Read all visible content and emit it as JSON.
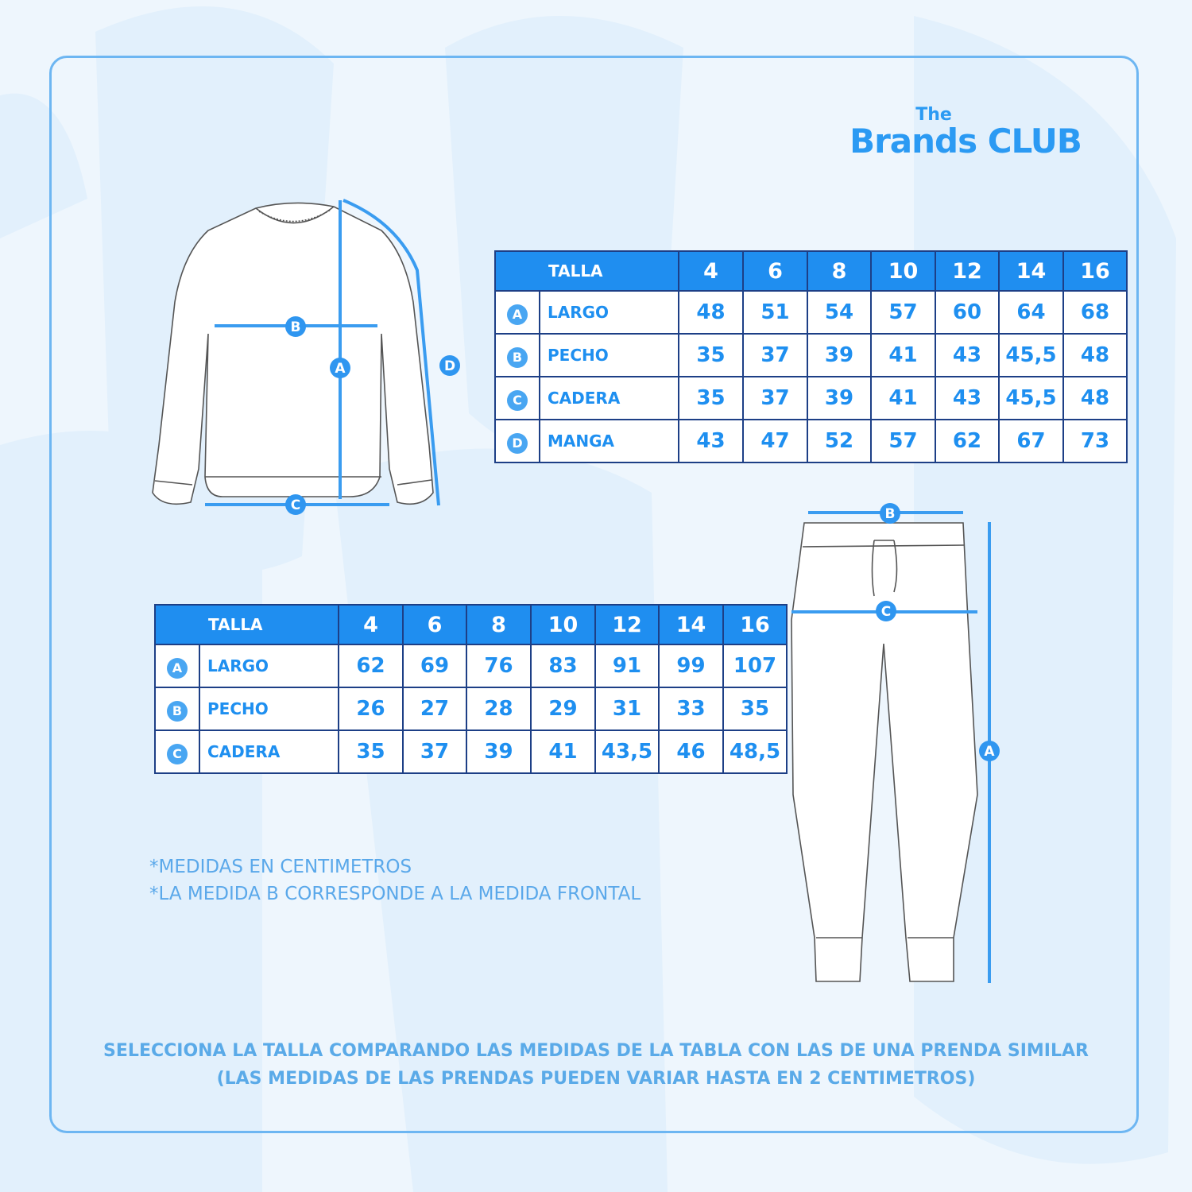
{
  "logo": {
    "line1": "The",
    "line2": "Brands CLUB"
  },
  "colors": {
    "header": "#1f8ef0",
    "border": "#1d3f86",
    "text": "#1e8ff0",
    "frame": "#6db6f2",
    "background": "#eef6fd"
  },
  "sweater_table": {
    "header_label": "TALLA",
    "sizes": [
      "4",
      "6",
      "8",
      "10",
      "12",
      "14",
      "16"
    ],
    "rows": [
      {
        "key": "A",
        "label": "LARGO",
        "values": [
          "48",
          "51",
          "54",
          "57",
          "60",
          "64",
          "68"
        ]
      },
      {
        "key": "B",
        "label": "PECHO",
        "values": [
          "35",
          "37",
          "39",
          "41",
          "43",
          "45,5",
          "48"
        ]
      },
      {
        "key": "C",
        "label": "CADERA",
        "values": [
          "35",
          "37",
          "39",
          "41",
          "43",
          "45,5",
          "48"
        ]
      },
      {
        "key": "D",
        "label": "MANGA",
        "values": [
          "43",
          "47",
          "52",
          "57",
          "62",
          "67",
          "73"
        ]
      }
    ]
  },
  "pants_table": {
    "header_label": "TALLA",
    "sizes": [
      "4",
      "6",
      "8",
      "10",
      "12",
      "14",
      "16"
    ],
    "rows": [
      {
        "key": "A",
        "label": "LARGO",
        "values": [
          "62",
          "69",
          "76",
          "83",
          "91",
          "99",
          "107"
        ]
      },
      {
        "key": "B",
        "label": "PECHO",
        "values": [
          "26",
          "27",
          "28",
          "29",
          "31",
          "33",
          "35"
        ]
      },
      {
        "key": "C",
        "label": "CADERA",
        "values": [
          "35",
          "37",
          "39",
          "41",
          "43,5",
          "46",
          "48,5"
        ]
      }
    ]
  },
  "sweater_markers": {
    "a": "A",
    "b": "B",
    "c": "C",
    "d": "D"
  },
  "pants_markers": {
    "a": "A",
    "b": "B",
    "c": "C"
  },
  "notes": [
    "*MEDIDAS EN CENTIMETROS",
    "*LA MEDIDA B CORRESPONDE A LA MEDIDA FRONTAL"
  ],
  "footer": [
    "SELECCIONA LA TALLA COMPARANDO LAS MEDIDAS DE LA TABLA CON LAS DE UNA PRENDA SIMILAR",
    "(LAS MEDIDAS DE LAS PRENDAS PUEDEN VARIAR HASTA EN 2 CENTIMETROS)"
  ]
}
